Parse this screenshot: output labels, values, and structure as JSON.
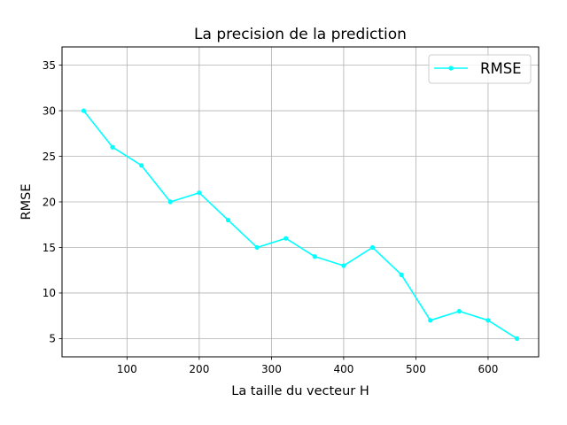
{
  "chart_data": {
    "type": "line",
    "title": "La precision de la prediction",
    "xlabel": "La taille du vecteur H",
    "ylabel": "RMSE",
    "x": [
      40,
      80,
      120,
      160,
      200,
      240,
      280,
      320,
      360,
      400,
      440,
      480,
      520,
      560,
      600,
      640
    ],
    "series": [
      {
        "name": "RMSE",
        "values": [
          30,
          26,
          24,
          20,
          21,
          18,
          15,
          16,
          14,
          13,
          15,
          12,
          7,
          8,
          7,
          5
        ],
        "color": "#00ffff",
        "marker": "point"
      }
    ],
    "xlim": [
      10,
      670
    ],
    "ylim": [
      3,
      37
    ],
    "xticks": [
      100,
      200,
      300,
      400,
      500,
      600
    ],
    "yticks": [
      5,
      10,
      15,
      20,
      25,
      30,
      35
    ],
    "grid": true,
    "legend_position": "top-right"
  }
}
